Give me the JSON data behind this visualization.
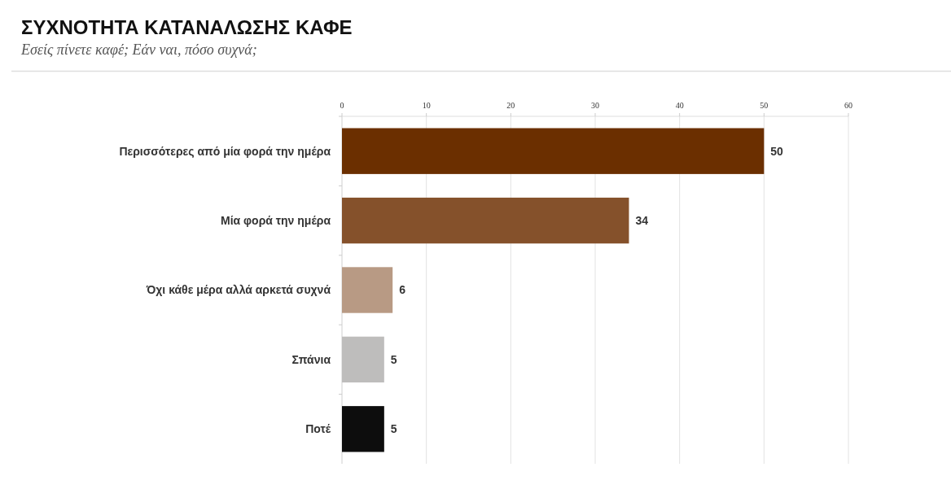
{
  "chart_data": {
    "type": "bar",
    "orientation": "horizontal",
    "title": "ΣΥΧΝΟΤΗΤΑ ΚΑΤΑΝΑΛΩΣΗΣ ΚΑΦΕ",
    "subtitle": "Εσείς πίνετε καφέ; Εάν ναι, πόσο συχνά;",
    "categories": [
      "Περισσότερες από μία φορά την ημέρα",
      "Μία φορά την ημέρα",
      "Όχι κάθε μέρα αλλά αρκετά συχνά",
      "Σπάνια",
      "Ποτέ"
    ],
    "values": [
      50,
      34,
      6,
      5,
      5
    ],
    "colors": [
      "#6b2f00",
      "#85512b",
      "#b89a84",
      "#bebdbc",
      "#0d0d0d"
    ],
    "xlim": [
      0,
      60
    ],
    "xticks": [
      0,
      10,
      20,
      30,
      40,
      50,
      60
    ],
    "grid": "x",
    "data_labels": true
  }
}
